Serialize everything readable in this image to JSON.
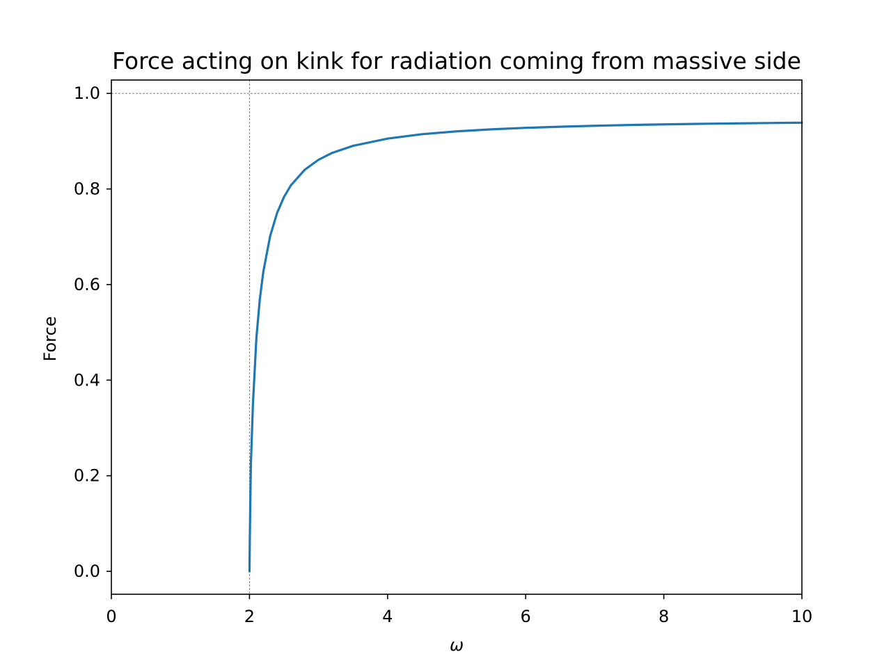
{
  "chart_data": {
    "type": "line",
    "title": "Force acting on kink for radiation coming from massive side",
    "xlabel": "ω",
    "ylabel": "Force",
    "xlim": [
      0,
      10
    ],
    "ylim": [
      -0.048,
      1.028
    ],
    "x_ticks": [
      0,
      2,
      4,
      6,
      8,
      10
    ],
    "x_tick_labels": [
      "0",
      "2",
      "4",
      "6",
      "8",
      "10"
    ],
    "y_ticks": [
      0.0,
      0.2,
      0.4,
      0.6,
      0.8,
      1.0
    ],
    "y_tick_labels": [
      "0.0",
      "0.2",
      "0.4",
      "0.6",
      "0.8",
      "1.0"
    ],
    "grid": false,
    "reference_lines": [
      {
        "orientation": "vertical",
        "x": 2,
        "style": "dashed",
        "color": "#808080"
      },
      {
        "orientation": "horizontal",
        "y": 1.0,
        "style": "dashed",
        "color": "#808080"
      }
    ],
    "series": [
      {
        "color": "#1f77b4",
        "x": [
          2.0,
          2.005,
          2.02,
          2.05,
          2.1,
          2.15,
          2.2,
          2.3,
          2.4,
          2.5,
          2.6,
          2.8,
          3.0,
          3.2,
          3.5,
          4.0,
          4.5,
          5.0,
          5.5,
          6.0,
          6.5,
          7.0,
          7.5,
          8.0,
          8.5,
          9.0,
          9.5,
          10.0
        ],
        "y": [
          0.0,
          0.0705,
          0.2215,
          0.3503,
          0.4879,
          0.5698,
          0.6265,
          0.702,
          0.75,
          0.7833,
          0.8077,
          0.8402,
          0.8611,
          0.8757,
          0.8903,
          0.9054,
          0.9147,
          0.9206,
          0.9248,
          0.928,
          0.9303,
          0.9323,
          0.9339,
          0.9352,
          0.9363,
          0.9372,
          0.938,
          0.9387
        ]
      }
    ]
  }
}
